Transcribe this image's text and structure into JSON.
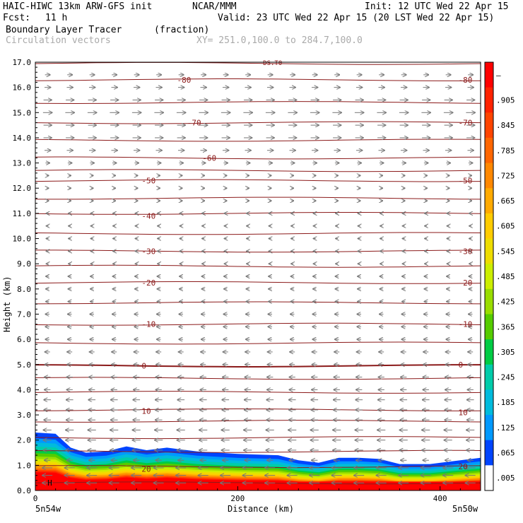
{
  "header": {
    "model": "HAIC-HIWC 13km ARW-GFS init",
    "org": "NCAR/MMM",
    "init": "Init: 12 UTC Wed 22 Apr 15",
    "fcst_label": "Fcst:",
    "fcst_value": "11 h",
    "valid": "Valid: 23 UTC Wed 22 Apr 15 (20 LST Wed 22 Apr 15)",
    "field": "Boundary Layer Tracer",
    "units": "(fraction)",
    "vectors": "Circulation vectors",
    "xy": "XY= 251.0,100.0 to 284.7,100.0"
  },
  "chart_data": {
    "type": "heatmap",
    "xlabel": "Distance (km)",
    "ylabel": "Height (km)",
    "xlim": [
      0,
      440
    ],
    "ylim": [
      0,
      17
    ],
    "x_ticks": [
      {
        "value": 0,
        "label": "0"
      },
      {
        "value": 200,
        "label": "200"
      },
      {
        "value": 400,
        "label": "400"
      }
    ],
    "x_end_labels": {
      "left": "5n54w",
      "right": "5n50w"
    },
    "y_ticks": [
      "0.0",
      "1.0",
      "2.0",
      "3.0",
      "4.0",
      "5.0",
      "6.0",
      "7.0",
      "8.0",
      "9.0",
      "10.0",
      "11.0",
      "12.0",
      "13.0",
      "14.0",
      "15.0",
      "16.0",
      "17.0"
    ],
    "colorbar": {
      "labels": [
        "–",
        ".905",
        ".845",
        ".785",
        ".725",
        ".665",
        ".605",
        ".545",
        ".485",
        ".425",
        ".365",
        ".305",
        ".245",
        ".185",
        ".125",
        ".065",
        ".005"
      ],
      "colors": [
        "#ff0000",
        "#ff2200",
        "#ff4400",
        "#ff6600",
        "#ff8800",
        "#ffaa00",
        "#ffcc00",
        "#eedd00",
        "#ccee00",
        "#99dd00",
        "#55cc00",
        "#00cc44",
        "#00ccaa",
        "#00bbdd",
        "#0099ff",
        "#0044ff",
        "#ffffff"
      ]
    },
    "tracer_top_km": [
      [
        0,
        2.3
      ],
      [
        20,
        2.25
      ],
      [
        35,
        1.7
      ],
      [
        50,
        1.5
      ],
      [
        70,
        1.55
      ],
      [
        90,
        1.75
      ],
      [
        110,
        1.6
      ],
      [
        130,
        1.7
      ],
      [
        160,
        1.55
      ],
      [
        200,
        1.45
      ],
      [
        240,
        1.4
      ],
      [
        260,
        1.2
      ],
      [
        280,
        1.1
      ],
      [
        300,
        1.3
      ],
      [
        320,
        1.3
      ],
      [
        340,
        1.25
      ],
      [
        360,
        1.05
      ],
      [
        390,
        1.05
      ],
      [
        410,
        1.15
      ],
      [
        440,
        1.3
      ]
    ],
    "tracer_layers": [
      {
        "value": ".065",
        "offset_km": 0.0
      },
      {
        "value": ".125",
        "offset_km": 0.15
      },
      {
        "value": ".185",
        "offset_km": 0.25
      },
      {
        "value": ".245",
        "offset_km": 0.35
      },
      {
        "value": ".305",
        "offset_km": 0.45
      },
      {
        "value": ".365",
        "offset_km": 0.52
      },
      {
        "value": ".425",
        "offset_km": 0.6
      },
      {
        "value": ".485",
        "offset_km": 0.66
      },
      {
        "value": ".545",
        "offset_km": 0.72
      },
      {
        "value": ".605",
        "offset_km": 0.78
      },
      {
        "value": ".665",
        "offset_km": 0.83
      },
      {
        "value": ".725",
        "offset_km": 0.87
      },
      {
        "value": ".785",
        "offset_km": 0.91
      },
      {
        "value": ".845",
        "offset_km": 0.94
      },
      {
        "value": ".905",
        "offset_km": 0.97
      },
      {
        "value": "–",
        "offset_km": 1.0
      }
    ],
    "temperature_contours_km": [
      0.3,
      0.95,
      1.55,
      2.1,
      2.75,
      3.2,
      3.9,
      4.45,
      4.95,
      5.85,
      6.6,
      7.45,
      8.25,
      8.9,
      9.5,
      10.2,
      11.0,
      11.6,
      12.3,
      12.7,
      13.2,
      13.9,
      14.6,
      15.4,
      16.3,
      16.95
    ],
    "contour_labels": [
      {
        "text": "20",
        "x": 105,
        "y": 0.85
      },
      {
        "text": "20",
        "x": 418,
        "y": 0.95
      },
      {
        "text": "10",
        "x": 105,
        "y": 3.15
      },
      {
        "text": "10",
        "x": 418,
        "y": 3.1
      },
      {
        "text": "0",
        "x": 105,
        "y": 4.95
      },
      {
        "text": "0",
        "x": 418,
        "y": 5.0
      },
      {
        "text": "-10",
        "x": 105,
        "y": 6.6
      },
      {
        "text": "-10",
        "x": 418,
        "y": 6.6
      },
      {
        "text": "-20",
        "x": 105,
        "y": 8.25
      },
      {
        "text": "-20",
        "x": 418,
        "y": 8.25
      },
      {
        "text": "-30",
        "x": 105,
        "y": 9.5
      },
      {
        "text": "-30",
        "x": 418,
        "y": 9.5
      },
      {
        "text": "-40",
        "x": 105,
        "y": 10.9
      },
      {
        "text": "-50",
        "x": 105,
        "y": 12.3
      },
      {
        "text": "-50",
        "x": 418,
        "y": 12.3
      },
      {
        "text": "-60",
        "x": 165,
        "y": 13.2
      },
      {
        "text": "-70",
        "x": 150,
        "y": 14.6
      },
      {
        "text": "-70",
        "x": 418,
        "y": 14.6
      },
      {
        "text": "-80",
        "x": 140,
        "y": 16.3
      },
      {
        "text": "-80",
        "x": 418,
        "y": 16.3
      }
    ],
    "vector_rows_km": [
      {
        "z": 0.3,
        "u": -1.0
      },
      {
        "z": 0.6,
        "u": -1.0
      },
      {
        "z": 0.9,
        "u": -1.0
      },
      {
        "z": 1.2,
        "u": -0.6
      },
      {
        "z": 1.6,
        "u": -0.8
      },
      {
        "z": 2.0,
        "u": -0.8
      },
      {
        "z": 2.4,
        "u": -0.8
      },
      {
        "z": 2.8,
        "u": -0.7
      },
      {
        "z": 3.2,
        "u": -0.7
      },
      {
        "z": 3.6,
        "u": -0.7
      },
      {
        "z": 4.0,
        "u": -0.6
      },
      {
        "z": 4.5,
        "u": -0.6
      },
      {
        "z": 5.0,
        "u": -0.5
      },
      {
        "z": 5.5,
        "u": -0.5
      },
      {
        "z": 6.0,
        "u": -0.4
      },
      {
        "z": 6.5,
        "u": -0.4
      },
      {
        "z": 7.0,
        "u": -0.4
      },
      {
        "z": 7.5,
        "u": -0.3
      },
      {
        "z": 8.0,
        "u": -0.3
      },
      {
        "z": 8.5,
        "u": -0.3
      },
      {
        "z": 9.0,
        "u": -0.2
      },
      {
        "z": 9.5,
        "u": -0.2
      },
      {
        "z": 10.0,
        "u": -0.2
      },
      {
        "z": 10.5,
        "u": -0.15
      },
      {
        "z": 11.0,
        "u": -0.15
      },
      {
        "z": 11.5,
        "u": 0.15
      },
      {
        "z": 12.0,
        "u": 0.2
      },
      {
        "z": 12.5,
        "u": 0.2
      },
      {
        "z": 13.0,
        "u": 0.4
      },
      {
        "z": 13.5,
        "u": 0.6
      },
      {
        "z": 14.0,
        "u": 0.8
      },
      {
        "z": 14.5,
        "u": 0.8
      },
      {
        "z": 15.0,
        "u": 0.9
      },
      {
        "z": 15.5,
        "u": 0.8
      },
      {
        "z": 16.0,
        "u": 0.6
      },
      {
        "z": 16.5,
        "u": 0.5
      }
    ],
    "surface_marker": "H",
    "top_marker": "DS.T0"
  }
}
